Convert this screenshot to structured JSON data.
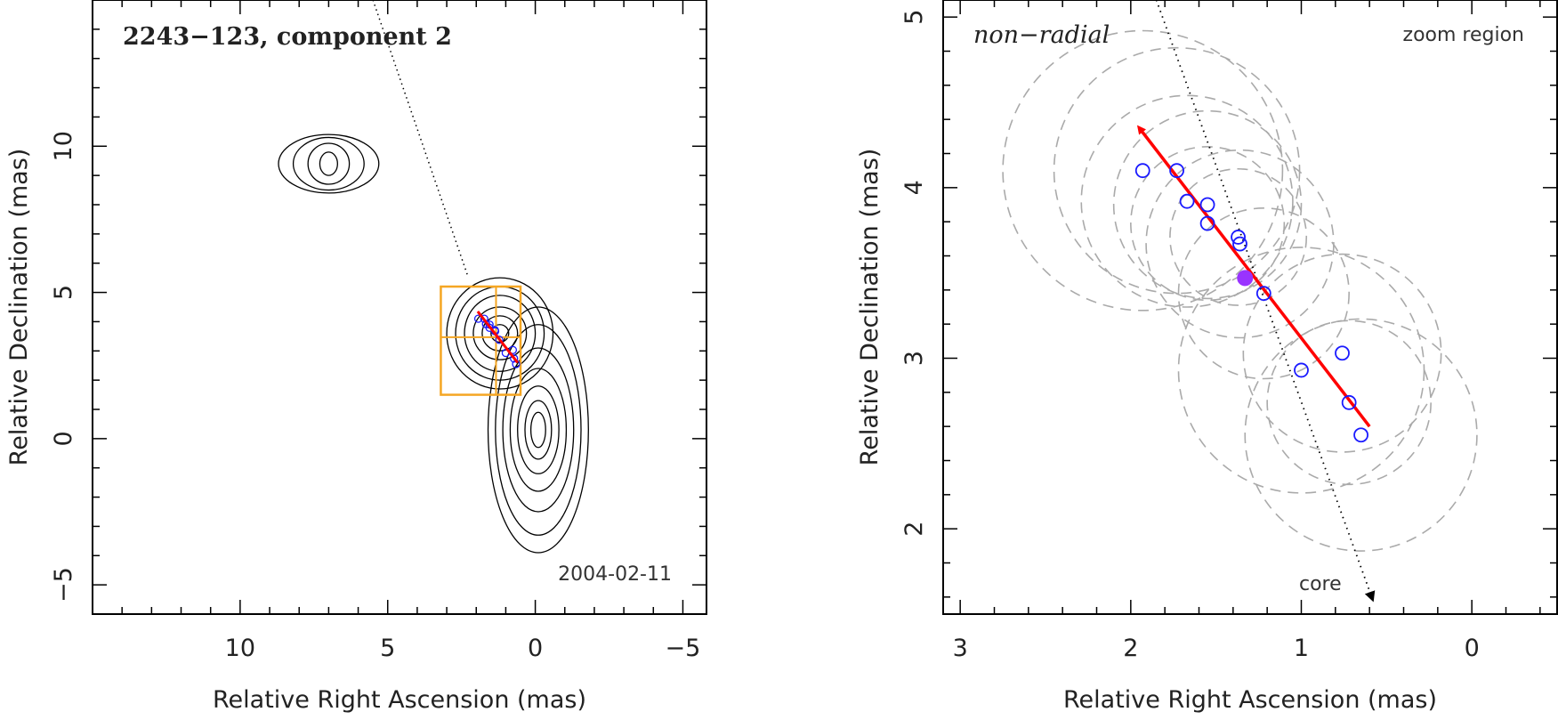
{
  "figure": {
    "panels": [
      {
        "id": "left",
        "title": "2243−123, component 2",
        "date": "2004-02-11",
        "xlabel": "Relative Right Ascension (mas)",
        "ylabel": "Relative Declination (mas)"
      },
      {
        "id": "right",
        "title": "non−radial",
        "annotation": "zoom region",
        "core_label": "core",
        "xlabel": "Relative Right Ascension (mas)",
        "ylabel": "Relative Declination (mas)"
      }
    ]
  },
  "chart_data": [
    {
      "type": "scatter",
      "title": "2243−123, component 2",
      "xlabel": "Relative Right Ascension (mas)",
      "ylabel": "Relative Declination (mas)",
      "xlim": [
        15,
        -5.8
      ],
      "ylim": [
        -6,
        15
      ],
      "x_ticks": [
        "10",
        "5",
        "0",
        "−5"
      ],
      "x_tick_values": [
        10,
        5,
        0,
        -5
      ],
      "y_ticks": [
        "−5",
        "0",
        "5",
        "10"
      ],
      "y_tick_values": [
        -5,
        0,
        5,
        10
      ],
      "annotation": "2004-02-11",
      "contours": [
        {
          "cx": -0.1,
          "cy": 0.3,
          "rx": [
            0.25,
            0.45,
            0.7,
            0.95,
            1.2,
            1.45,
            1.7
          ],
          "ry": [
            0.6,
            1.0,
            1.5,
            2.1,
            2.8,
            3.6,
            4.2
          ]
        },
        {
          "cx": 1.2,
          "cy": 3.6,
          "rx": [
            0.3,
            0.6,
            0.9,
            1.2,
            1.5,
            1.8
          ],
          "ry": [
            0.3,
            0.6,
            0.9,
            1.3,
            1.6,
            1.9
          ]
        },
        {
          "cx": 7.0,
          "cy": 9.4,
          "rx": [
            0.3,
            0.7,
            1.2,
            1.7
          ],
          "ry": [
            0.4,
            0.7,
            0.9,
            1.0
          ]
        }
      ],
      "zoom_boxes": [
        [
          3.2,
          1.5,
          0.5,
          5.2
        ]
      ],
      "track_line": {
        "from": [
          5.5,
          15
        ],
        "to": [
          2.3,
          5.6
        ]
      },
      "points": {
        "x": [
          1.93,
          1.73,
          1.67,
          1.55,
          1.55,
          1.37,
          1.36,
          1.22,
          1.0,
          0.76,
          0.72,
          0.65
        ],
        "y": [
          4.1,
          4.1,
          3.92,
          3.9,
          3.79,
          3.71,
          3.67,
          3.38,
          2.93,
          3.03,
          2.74,
          2.55
        ]
      },
      "vector": {
        "from": [
          0.6,
          2.6
        ],
        "to": [
          1.95,
          4.35
        ],
        "color": "#ff0000"
      }
    },
    {
      "type": "scatter",
      "title": "non−radial",
      "xlabel": "Relative Right Ascension (mas)",
      "ylabel": "Relative Declination (mas)",
      "xlim": [
        3.1,
        -0.5
      ],
      "ylim": [
        1.5,
        5.1
      ],
      "x_ticks": [
        "3",
        "2",
        "1",
        "0"
      ],
      "x_tick_values": [
        3,
        2,
        1,
        0
      ],
      "y_ticks": [
        "2",
        "3",
        "4",
        "5"
      ],
      "y_tick_values": [
        2,
        3,
        4,
        5
      ],
      "annotation": "zoom region",
      "core_label": "core",
      "points": {
        "x": [
          1.93,
          1.73,
          1.67,
          1.55,
          1.55,
          1.37,
          1.36,
          1.22,
          1.0,
          0.76,
          0.72,
          0.65
        ],
        "y": [
          4.1,
          4.1,
          3.92,
          3.9,
          3.79,
          3.71,
          3.67,
          3.38,
          2.93,
          3.03,
          2.74,
          2.55
        ],
        "color": "#1a1aff"
      },
      "mean_point": {
        "x": 1.33,
        "y": 3.47,
        "color": "#9933ff"
      },
      "uncertainty_circles": [
        {
          "x": 1.93,
          "y": 4.1,
          "r": 0.82
        },
        {
          "x": 1.73,
          "y": 4.1,
          "r": 0.72
        },
        {
          "x": 1.67,
          "y": 3.92,
          "r": 0.62
        },
        {
          "x": 1.55,
          "y": 3.9,
          "r": 0.55
        },
        {
          "x": 1.55,
          "y": 3.79,
          "r": 0.45
        },
        {
          "x": 1.37,
          "y": 3.71,
          "r": 0.4
        },
        {
          "x": 1.36,
          "y": 3.67,
          "r": 0.55
        },
        {
          "x": 1.22,
          "y": 3.38,
          "r": 0.5
        },
        {
          "x": 1.0,
          "y": 2.93,
          "r": 0.72
        },
        {
          "x": 0.76,
          "y": 3.03,
          "r": 0.58
        },
        {
          "x": 0.72,
          "y": 2.74,
          "r": 0.48
        },
        {
          "x": 0.65,
          "y": 2.55,
          "r": 0.68
        }
      ],
      "vector": {
        "from": [
          0.6,
          2.6
        ],
        "to": [
          1.95,
          4.35
        ],
        "color": "#ff0000"
      },
      "core_direction": {
        "from": [
          1.85,
          5.1
        ],
        "to": [
          0.58,
          1.58
        ]
      }
    }
  ]
}
